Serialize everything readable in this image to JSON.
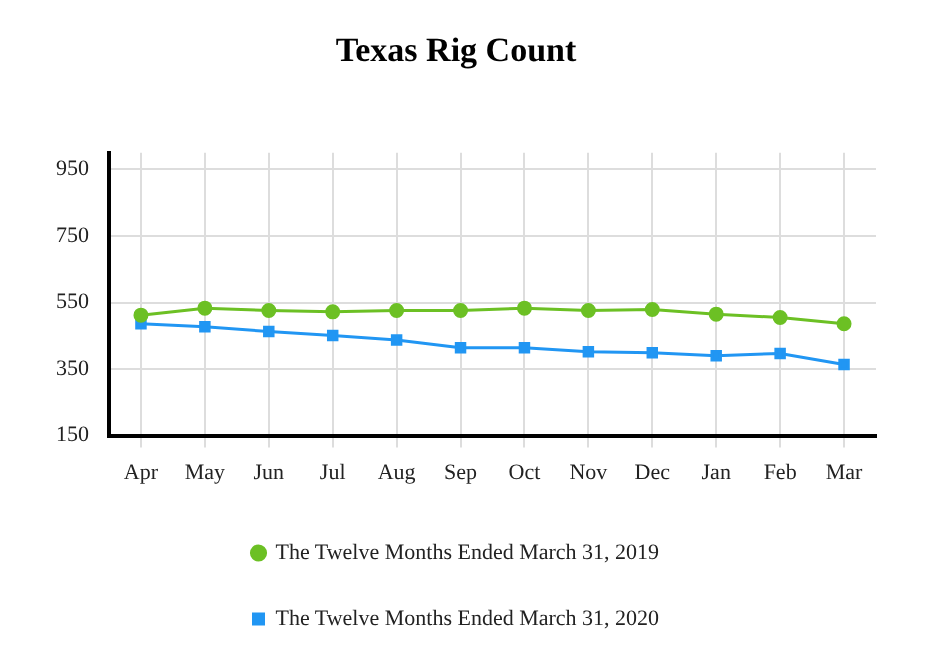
{
  "chart_data": {
    "type": "line",
    "title": "Texas Rig Count",
    "categories": [
      "Apr",
      "May",
      "Jun",
      "Jul",
      "Aug",
      "Sep",
      "Oct",
      "Nov",
      "Dec",
      "Jan",
      "Feb",
      "Mar"
    ],
    "series": [
      {
        "name": "The Twelve Months Ended March 31, 2019",
        "color": "#6cc024",
        "marker": "circle",
        "values": [
          512,
          533,
          526,
          522,
          526,
          526,
          533,
          526,
          529,
          515,
          505,
          486
        ]
      },
      {
        "name": "The Twelve Months Ended March 31, 2020",
        "color": "#2196f3",
        "marker": "square",
        "values": [
          486,
          477,
          463,
          451,
          437,
          414,
          414,
          402,
          399,
          390,
          397,
          364
        ]
      }
    ],
    "ylim": [
      150,
      1000
    ],
    "yticks": [
      150,
      350,
      550,
      750,
      950
    ],
    "grid": true,
    "legend": "bottom",
    "line_style": "solid"
  }
}
